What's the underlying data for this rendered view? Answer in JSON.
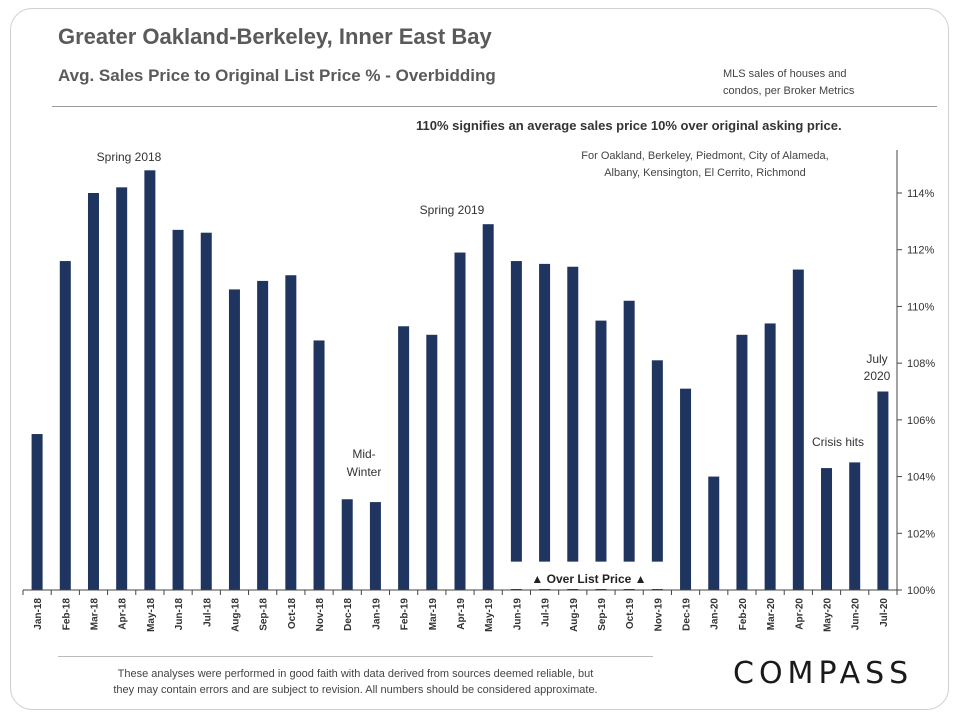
{
  "header": {
    "title": "Greater Oakland-Berkeley, Inner East Bay",
    "subtitle": "Avg. Sales Price to Original  List Price % - Overbidding",
    "source_line1": "MLS sales of houses and",
    "source_line2": "condos,  per Broker Metrics"
  },
  "note": "110% signifies an average sales price 10% over original asking price.",
  "cities": {
    "line1": "For Oakland,  Berkeley, Piedmont, City of Alameda,",
    "line2": "Albany,  Kensington,  El Cerrito, Richmond"
  },
  "footer": {
    "disclaimer_line1": "These analyses were performed in good faith with data derived from sources deemed reliable, but",
    "disclaimer_line2": "they may contain  errors and are subject to revision.  All numbers should be considered  approximate.",
    "logo": "COMPASS"
  },
  "colors": {
    "bar": "#1f3560",
    "axis": "#444444"
  },
  "chart_data": {
    "type": "bar",
    "title": "Avg. Sales Price to Original  List Price % - Overbidding",
    "categories": [
      "Jan-18",
      "Feb-18",
      "Mar-18",
      "Apr-18",
      "May-18",
      "Jun-18",
      "Jul-18",
      "Aug-18",
      "Sep-18",
      "Oct-18",
      "Nov-18",
      "Dec-18",
      "Jan-19",
      "Feb-19",
      "Mar-19",
      "Apr-19",
      "May-19",
      "Jun-19",
      "Jul-19",
      "Aug-19",
      "Sep-19",
      "Oct-19",
      "Nov-19",
      "Dec-19",
      "Jan-20",
      "Feb-20",
      "Mar-20",
      "Apr-20",
      "May-20",
      "Jun-20",
      "Jul-20"
    ],
    "values": [
      105.5,
      111.6,
      114.0,
      114.2,
      114.8,
      112.7,
      112.6,
      110.6,
      110.9,
      111.1,
      108.8,
      103.2,
      103.1,
      109.3,
      109.0,
      111.9,
      112.9,
      111.6,
      111.5,
      111.4,
      109.5,
      110.2,
      108.1,
      107.1,
      104.0,
      109.0,
      109.4,
      111.3,
      104.3,
      104.5,
      107.0
    ],
    "ylim": [
      100,
      116
    ],
    "yticks": [
      "100%",
      "102%",
      "104%",
      "106%",
      "108%",
      "110%",
      "112%",
      "114%"
    ],
    "y_axis_position": "right",
    "grid": false,
    "annotations": {
      "spring2018": "Spring 2018",
      "spring2019": "Spring 2019",
      "midwinter1": "Mid-",
      "midwinter2": "Winter",
      "crisis": "Crisis hits",
      "july1": "July",
      "july2": "2020",
      "overlist": "▲ Over List Price ▲"
    },
    "overlist_threshold": 101
  }
}
